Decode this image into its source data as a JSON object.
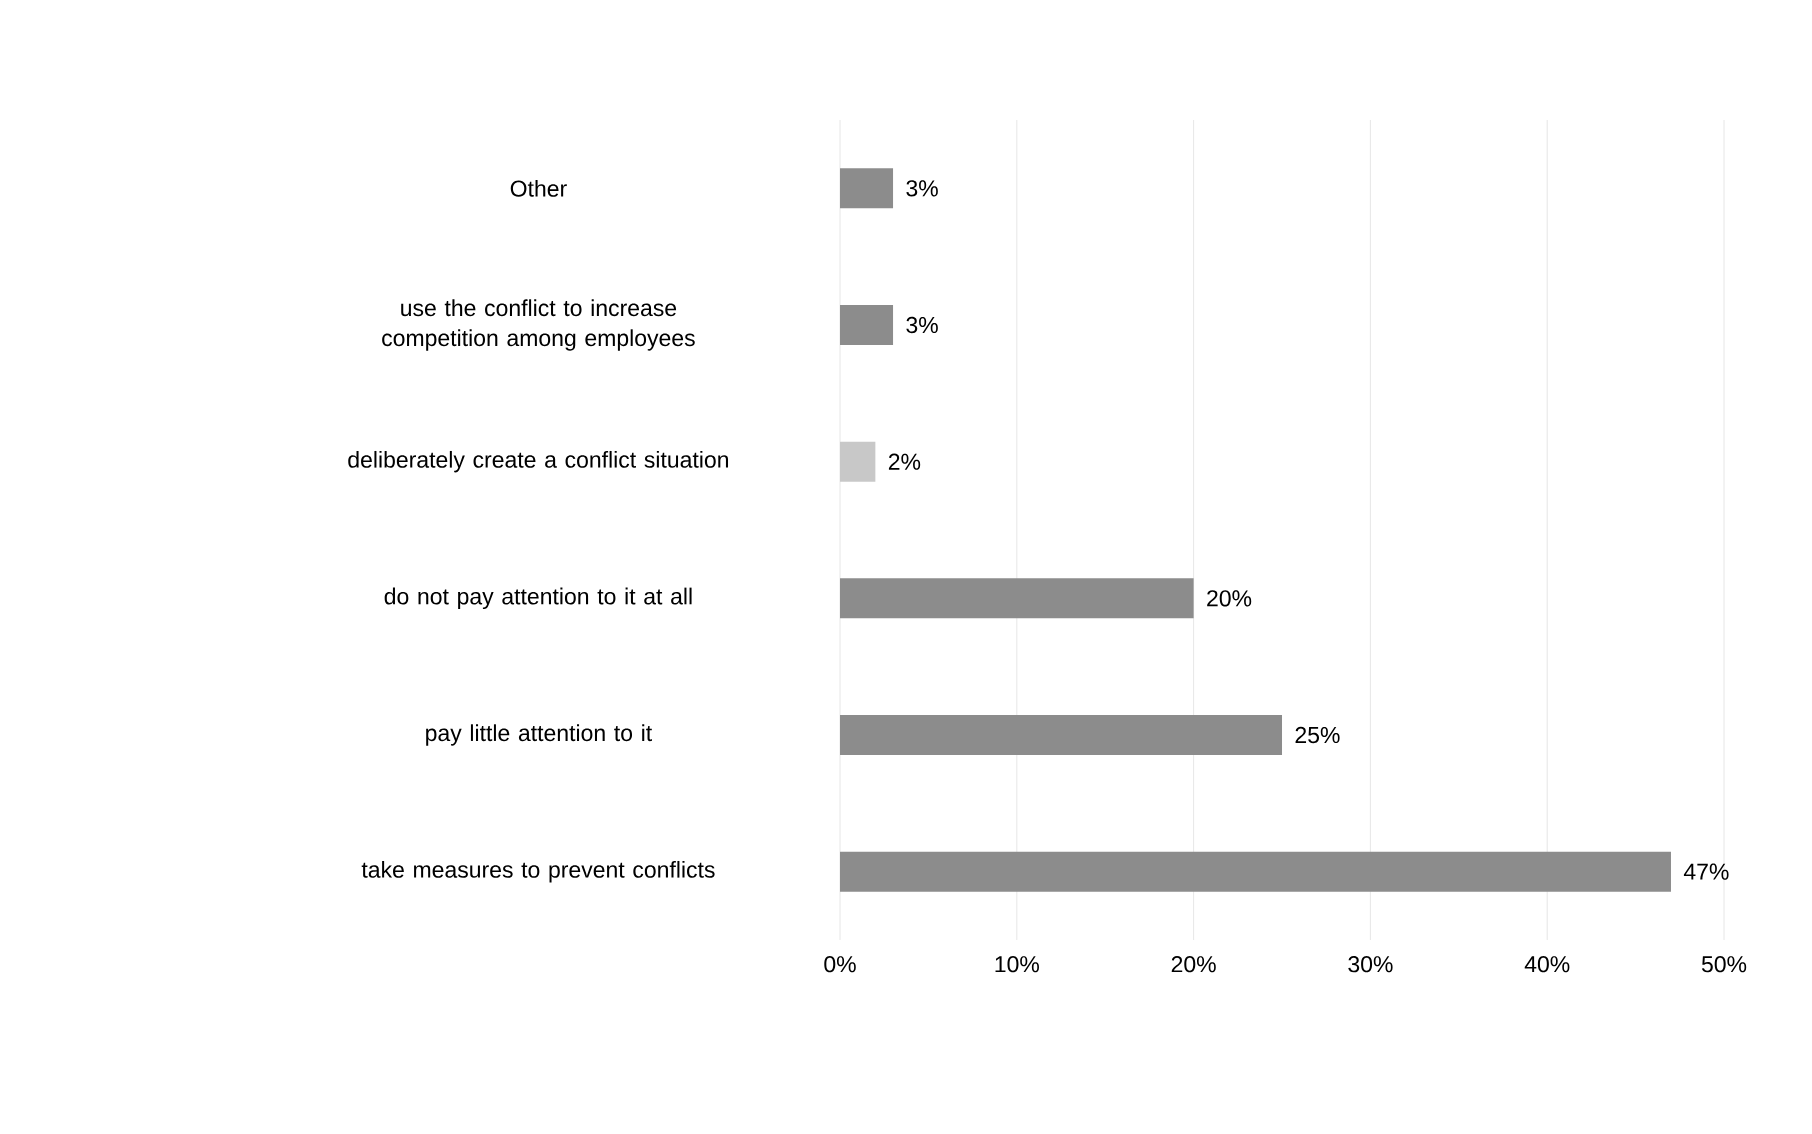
{
  "chart_data": {
    "type": "bar",
    "orientation": "horizontal",
    "categories": [
      "Other",
      "use the conflict to increase competition among employees",
      "deliberately create a conflict situation",
      "do not pay attention to it at all",
      "pay little attention to it",
      "take measures to prevent conflicts"
    ],
    "values": [
      3,
      3,
      2,
      20,
      25,
      47
    ],
    "colors": [
      "#8c8c8c",
      "#8c8c8c",
      "#c8c8c8",
      "#8c8c8c",
      "#8c8c8c",
      "#8c8c8c"
    ],
    "value_labels": [
      "3%",
      "3%",
      "2%",
      "20%",
      "25%",
      "47%"
    ],
    "xlim": [
      0,
      50
    ],
    "xticks": [
      {
        "value": 0,
        "label": "0%"
      },
      {
        "value": 10,
        "label": "10%"
      },
      {
        "value": 20,
        "label": "20%"
      },
      {
        "value": 30,
        "label": "30%"
      },
      {
        "value": 40,
        "label": "40%"
      },
      {
        "value": 50,
        "label": "50%"
      }
    ],
    "grid": "x"
  }
}
